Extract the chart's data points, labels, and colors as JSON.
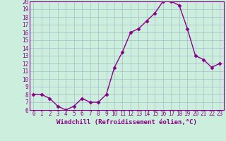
{
  "x": [
    0,
    1,
    2,
    3,
    4,
    5,
    6,
    7,
    8,
    9,
    10,
    11,
    12,
    13,
    14,
    15,
    16,
    17,
    18,
    19,
    20,
    21,
    22,
    23
  ],
  "y": [
    8,
    8,
    7.5,
    6.5,
    6,
    6.5,
    7.5,
    7,
    7,
    8,
    11.5,
    13.5,
    16,
    16.5,
    17.5,
    18.5,
    20,
    20,
    19.5,
    16.5,
    13,
    12.5,
    11.5,
    12
  ],
  "line_color": "#880088",
  "marker": "D",
  "marker_size": 2.5,
  "linewidth": 1.0,
  "xlabel": "Windchill (Refroidissement éolien,°C)",
  "xlabel_fontsize": 6.5,
  "ylim": [
    6,
    20
  ],
  "xlim_min": -0.5,
  "xlim_max": 23.5,
  "yticks": [
    6,
    7,
    8,
    9,
    10,
    11,
    12,
    13,
    14,
    15,
    16,
    17,
    18,
    19,
    20
  ],
  "xticks": [
    0,
    1,
    2,
    3,
    4,
    5,
    6,
    7,
    8,
    9,
    10,
    11,
    12,
    13,
    14,
    15,
    16,
    17,
    18,
    19,
    20,
    21,
    22,
    23
  ],
  "tick_fontsize": 5.5,
  "background_color": "#cceedd",
  "grid_color": "#aabbcc",
  "line_and_text_color": "#880088",
  "fig_width": 3.2,
  "fig_height": 2.0,
  "dpi": 100
}
